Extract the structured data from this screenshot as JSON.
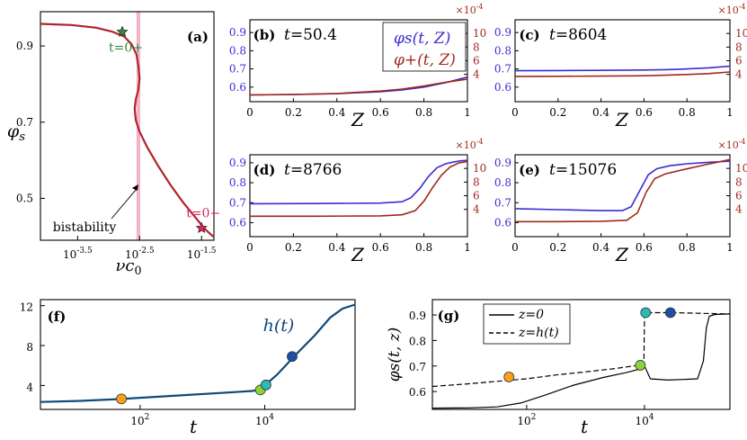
{
  "colors": {
    "phi": "#3b2bd1",
    "plus": "#a02a1a",
    "s_curve": "#b0232e",
    "h_curve": "#0e4a7a",
    "band": "#f6b3c4",
    "marker_b": "#f7a11a",
    "marker_c": "#8ad33b",
    "marker_d": "#2bbbb6",
    "marker_e": "#1e4fa8",
    "star_green": "#2e8b3c",
    "star_red": "#e0245e"
  },
  "chart_data": [
    {
      "id": "a",
      "type": "line",
      "panel_label": "(a)",
      "xlabel": "νc₀",
      "ylabel": "φs",
      "xscale": "log",
      "x_tick_labels": [
        "10^-3.5",
        "10^-2.5",
        "10^-1.5"
      ],
      "y_tick_labels": [
        "0.5",
        "0.7",
        "0.9"
      ],
      "xlim_log10": [
        -4.1,
        -1.3
      ],
      "ylim": [
        0.39,
        0.99
      ],
      "series": [
        {
          "x_log10": [
            -4.1,
            -3.6,
            -3.2,
            -2.95,
            -2.75,
            -2.63,
            -2.55,
            -2.52,
            -2.5,
            -2.52,
            -2.56,
            -2.58,
            -2.56,
            -2.5,
            -2.38,
            -2.2,
            -2.0,
            -1.8,
            -1.6,
            -1.45,
            -1.35,
            -1.3
          ],
          "y": [
            0.958,
            0.955,
            0.948,
            0.938,
            0.925,
            0.905,
            0.878,
            0.848,
            0.815,
            0.785,
            0.76,
            0.735,
            0.705,
            0.675,
            0.635,
            0.585,
            0.535,
            0.49,
            0.45,
            0.42,
            0.405,
            0.398
          ]
        }
      ],
      "band_log10": [
        -2.55,
        -2.49
      ],
      "annotations": [
        {
          "text": "bistability",
          "x_log10": -2.55,
          "y": 0.52
        },
        {
          "text": "t=0+",
          "x_log10": -2.78,
          "y": 0.937,
          "color": "star_green"
        },
        {
          "text": "t=0−",
          "x_log10": -1.5,
          "y": 0.422,
          "color": "star_red"
        }
      ]
    },
    {
      "id": "b",
      "type": "line",
      "panel_label": "(b)",
      "time_label": "t=50.4",
      "marker_color": "marker_b",
      "xlabel": "Z",
      "xlim": [
        0,
        1
      ],
      "ylim_left": [
        0.52,
        0.97
      ],
      "ylim_right": [
        0,
        12
      ],
      "right_scale_label": "×10^-4",
      "x_tick_labels": [
        "0",
        "0.2",
        "0.4",
        "0.6",
        "0.8",
        "1"
      ],
      "y_tick_labels_left": [
        "0.6",
        "0.7",
        "0.8",
        "0.9"
      ],
      "y_tick_labels_right": [
        "4",
        "6",
        "8",
        "10"
      ],
      "legend": [
        "φs(t, Z)",
        "φ+(t, Z)"
      ],
      "series": [
        {
          "name": "φs(t, Z)",
          "axis": "left",
          "x": [
            0,
            0.2,
            0.4,
            0.6,
            0.7,
            0.8,
            0.9,
            1.0
          ],
          "y": [
            0.557,
            0.559,
            0.564,
            0.575,
            0.585,
            0.6,
            0.625,
            0.655
          ]
        },
        {
          "name": "φ+(t, Z)",
          "axis": "right",
          "x": [
            0,
            0.2,
            0.4,
            0.6,
            0.7,
            0.8,
            0.9,
            1.0
          ],
          "y": [
            1.0,
            1.05,
            1.2,
            1.55,
            1.85,
            2.3,
            2.85,
            3.3
          ]
        }
      ]
    },
    {
      "id": "c",
      "type": "line",
      "panel_label": "(c)",
      "time_label": "t=8604",
      "marker_color": "marker_c",
      "xlabel": "Z",
      "xlim": [
        0,
        1
      ],
      "ylim_left": [
        0.52,
        0.97
      ],
      "ylim_right": [
        0,
        12
      ],
      "right_scale_label": "×10^-4",
      "x_tick_labels": [
        "0",
        "0.2",
        "0.4",
        "0.6",
        "0.8",
        "1"
      ],
      "y_tick_labels_left": [
        "0.6",
        "0.7",
        "0.8",
        "0.9"
      ],
      "y_tick_labels_right": [
        "4",
        "6",
        "8",
        "10"
      ],
      "series": [
        {
          "axis": "left",
          "x": [
            0,
            0.2,
            0.4,
            0.6,
            0.7,
            0.8,
            0.9,
            1.0
          ],
          "y": [
            0.69,
            0.691,
            0.692,
            0.694,
            0.696,
            0.7,
            0.706,
            0.715
          ]
        },
        {
          "axis": "right",
          "x": [
            0,
            0.2,
            0.4,
            0.6,
            0.7,
            0.8,
            0.9,
            1.0
          ],
          "y": [
            3.7,
            3.72,
            3.75,
            3.8,
            3.88,
            3.98,
            4.12,
            4.35
          ]
        }
      ]
    },
    {
      "id": "d",
      "type": "line",
      "panel_label": "(d)",
      "time_label": "t=8766",
      "marker_color": "marker_d",
      "xlabel": "Z",
      "xlim": [
        0,
        1
      ],
      "ylim_left": [
        0.53,
        0.94
      ],
      "ylim_right": [
        0,
        12
      ],
      "right_scale_label": "×10^-4",
      "x_tick_labels": [
        "0",
        "0.2",
        "0.4",
        "0.6",
        "0.8",
        "1"
      ],
      "y_tick_labels_left": [
        "0.6",
        "0.7",
        "0.8",
        "0.9"
      ],
      "y_tick_labels_right": [
        "4",
        "6",
        "8",
        "10"
      ],
      "series": [
        {
          "axis": "left",
          "x": [
            0,
            0.3,
            0.6,
            0.7,
            0.74,
            0.78,
            0.82,
            0.86,
            0.9,
            0.94,
            0.97,
            1.0
          ],
          "y": [
            0.695,
            0.696,
            0.698,
            0.705,
            0.725,
            0.77,
            0.83,
            0.875,
            0.895,
            0.905,
            0.91,
            0.912
          ]
        },
        {
          "axis": "right",
          "x": [
            0,
            0.3,
            0.6,
            0.7,
            0.76,
            0.8,
            0.84,
            0.88,
            0.92,
            0.96,
            1.0
          ],
          "y": [
            3.0,
            3.0,
            3.05,
            3.2,
            3.8,
            5.2,
            7.2,
            9.0,
            10.2,
            10.8,
            11.0
          ]
        }
      ]
    },
    {
      "id": "e",
      "type": "line",
      "panel_label": "(e)",
      "time_label": "t=15076",
      "marker_color": "marker_e",
      "xlabel": "Z",
      "xlim": [
        0,
        1
      ],
      "ylim_left": [
        0.53,
        0.94
      ],
      "ylim_right": [
        0,
        12
      ],
      "right_scale_label": "×10^-4",
      "x_tick_labels": [
        "0",
        "0.2",
        "0.4",
        "0.6",
        "0.8",
        "1"
      ],
      "y_tick_labels_left": [
        "0.6",
        "0.7",
        "0.8",
        "0.9"
      ],
      "y_tick_labels_right": [
        "4",
        "6",
        "8",
        "10"
      ],
      "series": [
        {
          "axis": "left",
          "x": [
            0,
            0.2,
            0.4,
            0.5,
            0.54,
            0.58,
            0.62,
            0.66,
            0.72,
            0.8,
            0.9,
            1.0
          ],
          "y": [
            0.67,
            0.665,
            0.66,
            0.66,
            0.68,
            0.76,
            0.84,
            0.87,
            0.885,
            0.895,
            0.902,
            0.908
          ]
        },
        {
          "axis": "right",
          "x": [
            0,
            0.2,
            0.4,
            0.52,
            0.57,
            0.61,
            0.65,
            0.7,
            0.78,
            0.88,
            1.0
          ],
          "y": [
            2.2,
            2.2,
            2.25,
            2.4,
            3.5,
            6.5,
            8.5,
            9.2,
            9.8,
            10.5,
            11.3
          ]
        }
      ]
    },
    {
      "id": "f",
      "type": "line",
      "panel_label": "(f)",
      "series_label": "h(t)",
      "xlabel": "t",
      "xscale": "log",
      "xlim_log10": [
        0.4,
        5.45
      ],
      "ylim": [
        1.6,
        12.6
      ],
      "x_tick_labels": [
        "10^2",
        "10^4"
      ],
      "y_tick_labels": [
        "4",
        "8",
        "12"
      ],
      "series": [
        {
          "name": "h(t)",
          "x_log10": [
            0.4,
            1.0,
            1.7,
            2.5,
            3.3,
            3.8,
            3.93,
            3.96,
            4.0,
            4.2,
            4.5,
            4.8,
            5.05,
            5.25,
            5.45
          ],
          "y": [
            2.35,
            2.45,
            2.65,
            2.95,
            3.25,
            3.45,
            3.6,
            3.75,
            4.0,
            5.1,
            7.1,
            9.0,
            10.8,
            11.7,
            12.1
          ]
        }
      ],
      "markers": [
        {
          "x_log10": 1.7,
          "y": 2.65,
          "color": "marker_b"
        },
        {
          "x_log10": 3.93,
          "y": 3.55,
          "color": "marker_c"
        },
        {
          "x_log10": 4.02,
          "y": 4.05,
          "color": "marker_d"
        },
        {
          "x_log10": 4.44,
          "y": 6.9,
          "color": "marker_e"
        }
      ]
    },
    {
      "id": "g",
      "type": "line",
      "panel_label": "(g)",
      "xlabel": "t",
      "ylabel": "φs(t, z)",
      "xscale": "log",
      "xlim_log10": [
        0.4,
        5.45
      ],
      "ylim": [
        0.53,
        0.96
      ],
      "x_tick_labels": [
        "10^2",
        "10^4"
      ],
      "y_tick_labels": [
        "0.6",
        "0.7",
        "0.8",
        "0.9"
      ],
      "legend": [
        "z=0",
        "z=h(t)"
      ],
      "series": [
        {
          "name": "z=0",
          "style": "solid",
          "x_log10": [
            0.4,
            1.0,
            1.5,
            1.9,
            2.3,
            2.8,
            3.3,
            3.7,
            3.95,
            4.0,
            4.1,
            4.4,
            4.9,
            5.0,
            5.05,
            5.1,
            5.2,
            5.45
          ],
          "y": [
            0.535,
            0.536,
            0.54,
            0.555,
            0.585,
            0.625,
            0.655,
            0.675,
            0.69,
            0.7,
            0.65,
            0.645,
            0.65,
            0.72,
            0.85,
            0.895,
            0.902,
            0.904
          ]
        },
        {
          "name": "z=h(t)",
          "style": "dashed",
          "x_log10": [
            0.4,
            1.0,
            1.5,
            2.0,
            2.5,
            3.0,
            3.5,
            3.9,
            3.99,
            4.0,
            4.5,
            5.0,
            5.45
          ],
          "y": [
            0.62,
            0.63,
            0.64,
            0.65,
            0.665,
            0.677,
            0.69,
            0.703,
            0.705,
            0.909,
            0.909,
            0.906,
            0.904
          ]
        }
      ],
      "markers": [
        {
          "x_log10": 1.7,
          "y": 0.657,
          "color": "marker_b"
        },
        {
          "x_log10": 3.93,
          "y": 0.703,
          "color": "marker_c"
        },
        {
          "x_log10": 4.02,
          "y": 0.909,
          "color": "marker_d"
        },
        {
          "x_log10": 4.44,
          "y": 0.909,
          "color": "marker_e"
        }
      ]
    }
  ]
}
